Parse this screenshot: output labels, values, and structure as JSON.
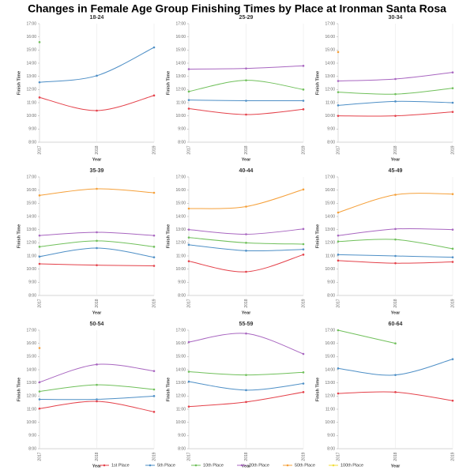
{
  "title": "Changes in Female Age Group Finishing Times by Place at Ironman Santa Rosa",
  "chart_data": [
    {
      "type": "line",
      "title": "18-24",
      "xlabel": "Year",
      "ylabel": "Finish Time",
      "categories": [
        "2017",
        "2018",
        "2019"
      ],
      "ylim": [
        8,
        17
      ],
      "yticks": [
        {
          "value": 8,
          "label": "8:00"
        },
        {
          "value": 9,
          "label": "9:00"
        },
        {
          "value": 10,
          "label": "10:00"
        },
        {
          "value": 11,
          "label": "11:00"
        },
        {
          "value": 12,
          "label": "12:00"
        },
        {
          "value": 13,
          "label": "13:00"
        },
        {
          "value": 14,
          "label": "14:00"
        },
        {
          "value": 15,
          "label": "15:00"
        },
        {
          "value": 16,
          "label": "16:00"
        },
        {
          "value": 17,
          "label": "17:00"
        }
      ],
      "series": [
        {
          "name": "1st Place",
          "color": "#e4414a",
          "values": [
            11.4,
            10.4,
            11.55
          ]
        },
        {
          "name": "5th Place",
          "color": "#4e8fc6",
          "values": [
            12.55,
            13.05,
            15.2
          ]
        },
        {
          "name": "10th Place",
          "color": "#70c05b",
          "values": [
            15.6,
            null,
            null
          ]
        },
        {
          "name": "20th Place",
          "color": "#a866c0",
          "values": [
            null,
            null,
            null
          ]
        },
        {
          "name": "50th Place",
          "color": "#f5a03a",
          "values": [
            null,
            null,
            null
          ]
        },
        {
          "name": "100th Place",
          "color": "#f2dd3a",
          "values": [
            null,
            null,
            null
          ]
        }
      ]
    },
    {
      "type": "line",
      "title": "25-29",
      "xlabel": "Year",
      "ylabel": "Finish Time",
      "categories": [
        "2017",
        "2018",
        "2019"
      ],
      "ylim": [
        8,
        17
      ],
      "yticks": [
        {
          "value": 8,
          "label": "8:00"
        },
        {
          "value": 9,
          "label": "9:00"
        },
        {
          "value": 10,
          "label": "10:00"
        },
        {
          "value": 11,
          "label": "11:00"
        },
        {
          "value": 12,
          "label": "12:00"
        },
        {
          "value": 13,
          "label": "13:00"
        },
        {
          "value": 14,
          "label": "14:00"
        },
        {
          "value": 15,
          "label": "15:00"
        },
        {
          "value": 16,
          "label": "16:00"
        },
        {
          "value": 17,
          "label": "17:00"
        }
      ],
      "series": [
        {
          "name": "1st Place",
          "color": "#e4414a",
          "values": [
            10.55,
            10.1,
            10.5
          ]
        },
        {
          "name": "5th Place",
          "color": "#4e8fc6",
          "values": [
            11.2,
            11.15,
            11.15
          ]
        },
        {
          "name": "10th Place",
          "color": "#70c05b",
          "values": [
            11.85,
            12.7,
            12.0
          ]
        },
        {
          "name": "20th Place",
          "color": "#a866c0",
          "values": [
            13.55,
            13.6,
            13.8
          ]
        },
        {
          "name": "50th Place",
          "color": "#f5a03a",
          "values": [
            null,
            null,
            null
          ]
        },
        {
          "name": "100th Place",
          "color": "#f2dd3a",
          "values": [
            null,
            null,
            null
          ]
        }
      ]
    },
    {
      "type": "line",
      "title": "30-34",
      "xlabel": "Year",
      "ylabel": "Finish Time",
      "categories": [
        "2017",
        "2018",
        "2019"
      ],
      "ylim": [
        8,
        17
      ],
      "yticks": [
        {
          "value": 8,
          "label": "8:00"
        },
        {
          "value": 9,
          "label": "9:00"
        },
        {
          "value": 10,
          "label": "10:00"
        },
        {
          "value": 11,
          "label": "11:00"
        },
        {
          "value": 12,
          "label": "12:00"
        },
        {
          "value": 13,
          "label": "13:00"
        },
        {
          "value": 14,
          "label": "14:00"
        },
        {
          "value": 15,
          "label": "15:00"
        },
        {
          "value": 16,
          "label": "16:00"
        },
        {
          "value": 17,
          "label": "17:00"
        }
      ],
      "series": [
        {
          "name": "1st Place",
          "color": "#e4414a",
          "values": [
            10.0,
            10.0,
            10.3
          ]
        },
        {
          "name": "5th Place",
          "color": "#4e8fc6",
          "values": [
            10.8,
            11.1,
            11.0
          ]
        },
        {
          "name": "10th Place",
          "color": "#70c05b",
          "values": [
            11.8,
            11.65,
            12.1
          ]
        },
        {
          "name": "20th Place",
          "color": "#a866c0",
          "values": [
            12.65,
            12.8,
            13.3
          ]
        },
        {
          "name": "50th Place",
          "color": "#f5a03a",
          "values": [
            14.85,
            null,
            null
          ]
        },
        {
          "name": "100th Place",
          "color": "#f2dd3a",
          "values": [
            null,
            null,
            null
          ]
        }
      ]
    },
    {
      "type": "line",
      "title": "35-39",
      "xlabel": "Year",
      "ylabel": "Finish Time",
      "categories": [
        "2017",
        "2018",
        "2019"
      ],
      "ylim": [
        8,
        17
      ],
      "yticks": [
        {
          "value": 8,
          "label": "8:00"
        },
        {
          "value": 9,
          "label": "9:00"
        },
        {
          "value": 10,
          "label": "10:00"
        },
        {
          "value": 11,
          "label": "11:00"
        },
        {
          "value": 12,
          "label": "12:00"
        },
        {
          "value": 13,
          "label": "13:00"
        },
        {
          "value": 14,
          "label": "14:00"
        },
        {
          "value": 15,
          "label": "15:00"
        },
        {
          "value": 16,
          "label": "16:00"
        },
        {
          "value": 17,
          "label": "17:00"
        }
      ],
      "series": [
        {
          "name": "1st Place",
          "color": "#e4414a",
          "values": [
            10.4,
            10.3,
            10.25
          ]
        },
        {
          "name": "5th Place",
          "color": "#4e8fc6",
          "values": [
            10.95,
            11.6,
            10.9
          ]
        },
        {
          "name": "10th Place",
          "color": "#70c05b",
          "values": [
            11.7,
            12.15,
            11.7
          ]
        },
        {
          "name": "20th Place",
          "color": "#a866c0",
          "values": [
            12.55,
            12.8,
            12.55
          ]
        },
        {
          "name": "50th Place",
          "color": "#f5a03a",
          "values": [
            15.6,
            16.1,
            15.8
          ]
        },
        {
          "name": "100th Place",
          "color": "#f2dd3a",
          "values": [
            null,
            null,
            null
          ]
        }
      ]
    },
    {
      "type": "line",
      "title": "40-44",
      "xlabel": "Year",
      "ylabel": "Finish Time",
      "categories": [
        "2017",
        "2018",
        "2019"
      ],
      "ylim": [
        8,
        17
      ],
      "yticks": [
        {
          "value": 8,
          "label": "8:00"
        },
        {
          "value": 9,
          "label": "9:00"
        },
        {
          "value": 10,
          "label": "10:00"
        },
        {
          "value": 11,
          "label": "11:00"
        },
        {
          "value": 12,
          "label": "12:00"
        },
        {
          "value": 13,
          "label": "13:00"
        },
        {
          "value": 14,
          "label": "14:00"
        },
        {
          "value": 15,
          "label": "15:00"
        },
        {
          "value": 16,
          "label": "16:00"
        },
        {
          "value": 17,
          "label": "17:00"
        }
      ],
      "series": [
        {
          "name": "1st Place",
          "color": "#e4414a",
          "values": [
            10.6,
            9.8,
            11.1
          ]
        },
        {
          "name": "5th Place",
          "color": "#4e8fc6",
          "values": [
            11.85,
            11.4,
            11.5
          ]
        },
        {
          "name": "10th Place",
          "color": "#70c05b",
          "values": [
            12.4,
            12.0,
            11.9
          ]
        },
        {
          "name": "20th Place",
          "color": "#a866c0",
          "values": [
            13.0,
            12.65,
            13.05
          ]
        },
        {
          "name": "50th Place",
          "color": "#f5a03a",
          "values": [
            14.6,
            14.75,
            16.05
          ]
        },
        {
          "name": "100th Place",
          "color": "#f2dd3a",
          "values": [
            null,
            null,
            null
          ]
        }
      ]
    },
    {
      "type": "line",
      "title": "45-49",
      "xlabel": "Year",
      "ylabel": "Finish Time",
      "categories": [
        "2017",
        "2018",
        "2019"
      ],
      "ylim": [
        8,
        17
      ],
      "yticks": [
        {
          "value": 8,
          "label": "8:00"
        },
        {
          "value": 9,
          "label": "9:00"
        },
        {
          "value": 10,
          "label": "10:00"
        },
        {
          "value": 11,
          "label": "11:00"
        },
        {
          "value": 12,
          "label": "12:00"
        },
        {
          "value": 13,
          "label": "13:00"
        },
        {
          "value": 14,
          "label": "14:00"
        },
        {
          "value": 15,
          "label": "15:00"
        },
        {
          "value": 16,
          "label": "16:00"
        },
        {
          "value": 17,
          "label": "17:00"
        }
      ],
      "series": [
        {
          "name": "1st Place",
          "color": "#e4414a",
          "values": [
            10.65,
            10.45,
            10.55
          ]
        },
        {
          "name": "5th Place",
          "color": "#4e8fc6",
          "values": [
            11.1,
            11.0,
            10.9
          ]
        },
        {
          "name": "10th Place",
          "color": "#70c05b",
          "values": [
            12.1,
            12.25,
            11.55
          ]
        },
        {
          "name": "20th Place",
          "color": "#a866c0",
          "values": [
            12.55,
            13.05,
            13.0
          ]
        },
        {
          "name": "50th Place",
          "color": "#f5a03a",
          "values": [
            14.3,
            15.65,
            15.7
          ]
        },
        {
          "name": "100th Place",
          "color": "#f2dd3a",
          "values": [
            null,
            null,
            null
          ]
        }
      ]
    },
    {
      "type": "line",
      "title": "50-54",
      "xlabel": "Year",
      "ylabel": "Finish Time",
      "categories": [
        "2017",
        "2018",
        "2019"
      ],
      "ylim": [
        8,
        17
      ],
      "yticks": [
        {
          "value": 8,
          "label": "8:00"
        },
        {
          "value": 9,
          "label": "9:00"
        },
        {
          "value": 10,
          "label": "10:00"
        },
        {
          "value": 11,
          "label": "11:00"
        },
        {
          "value": 12,
          "label": "12:00"
        },
        {
          "value": 13,
          "label": "13:00"
        },
        {
          "value": 14,
          "label": "14:00"
        },
        {
          "value": 15,
          "label": "15:00"
        },
        {
          "value": 16,
          "label": "16:00"
        },
        {
          "value": 17,
          "label": "17:00"
        }
      ],
      "series": [
        {
          "name": "1st Place",
          "color": "#e4414a",
          "values": [
            11.05,
            11.6,
            10.8
          ]
        },
        {
          "name": "5th Place",
          "color": "#4e8fc6",
          "values": [
            11.75,
            11.75,
            12.0
          ]
        },
        {
          "name": "10th Place",
          "color": "#70c05b",
          "values": [
            12.35,
            12.85,
            12.5
          ]
        },
        {
          "name": "20th Place",
          "color": "#a866c0",
          "values": [
            13.05,
            14.4,
            13.9
          ]
        },
        {
          "name": "50th Place",
          "color": "#f5a03a",
          "values": [
            15.65,
            null,
            null
          ]
        },
        {
          "name": "100th Place",
          "color": "#f2dd3a",
          "values": [
            null,
            null,
            null
          ]
        }
      ]
    },
    {
      "type": "line",
      "title": "55-59",
      "xlabel": "Year",
      "ylabel": "Finish Time",
      "categories": [
        "2017",
        "2018",
        "2019"
      ],
      "ylim": [
        8,
        17
      ],
      "yticks": [
        {
          "value": 8,
          "label": "8:00"
        },
        {
          "value": 9,
          "label": "9:00"
        },
        {
          "value": 10,
          "label": "10:00"
        },
        {
          "value": 11,
          "label": "11:00"
        },
        {
          "value": 12,
          "label": "12:00"
        },
        {
          "value": 13,
          "label": "13:00"
        },
        {
          "value": 14,
          "label": "14:00"
        },
        {
          "value": 15,
          "label": "15:00"
        },
        {
          "value": 16,
          "label": "16:00"
        },
        {
          "value": 17,
          "label": "17:00"
        }
      ],
      "series": [
        {
          "name": "1st Place",
          "color": "#e4414a",
          "values": [
            11.2,
            11.55,
            12.3
          ]
        },
        {
          "name": "5th Place",
          "color": "#4e8fc6",
          "values": [
            13.1,
            12.45,
            12.95
          ]
        },
        {
          "name": "10th Place",
          "color": "#70c05b",
          "values": [
            13.85,
            13.6,
            13.8
          ]
        },
        {
          "name": "20th Place",
          "color": "#a866c0",
          "values": [
            16.1,
            16.75,
            15.2
          ]
        },
        {
          "name": "50th Place",
          "color": "#f5a03a",
          "values": [
            null,
            null,
            null
          ]
        },
        {
          "name": "100th Place",
          "color": "#f2dd3a",
          "values": [
            null,
            null,
            null
          ]
        }
      ]
    },
    {
      "type": "line",
      "title": "60-64",
      "xlabel": "Year",
      "ylabel": "Finish Time",
      "categories": [
        "2017",
        "2018",
        "2019"
      ],
      "ylim": [
        8,
        17
      ],
      "yticks": [
        {
          "value": 8,
          "label": "8:00"
        },
        {
          "value": 9,
          "label": "9:00"
        },
        {
          "value": 10,
          "label": "10:00"
        },
        {
          "value": 11,
          "label": "11:00"
        },
        {
          "value": 12,
          "label": "12:00"
        },
        {
          "value": 13,
          "label": "13:00"
        },
        {
          "value": 14,
          "label": "14:00"
        },
        {
          "value": 15,
          "label": "15:00"
        },
        {
          "value": 16,
          "label": "16:00"
        },
        {
          "value": 17,
          "label": "17:00"
        }
      ],
      "series": [
        {
          "name": "1st Place",
          "color": "#e4414a",
          "values": [
            12.2,
            12.3,
            11.65
          ]
        },
        {
          "name": "5th Place",
          "color": "#4e8fc6",
          "values": [
            14.1,
            13.6,
            14.8
          ]
        },
        {
          "name": "10th Place",
          "color": "#70c05b",
          "values": [
            17.0,
            16.0,
            null
          ]
        },
        {
          "name": "20th Place",
          "color": "#a866c0",
          "values": [
            null,
            null,
            null
          ]
        },
        {
          "name": "50th Place",
          "color": "#f5a03a",
          "values": [
            null,
            null,
            null
          ]
        },
        {
          "name": "100th Place",
          "color": "#f2dd3a",
          "values": [
            null,
            null,
            null
          ]
        }
      ]
    }
  ]
}
